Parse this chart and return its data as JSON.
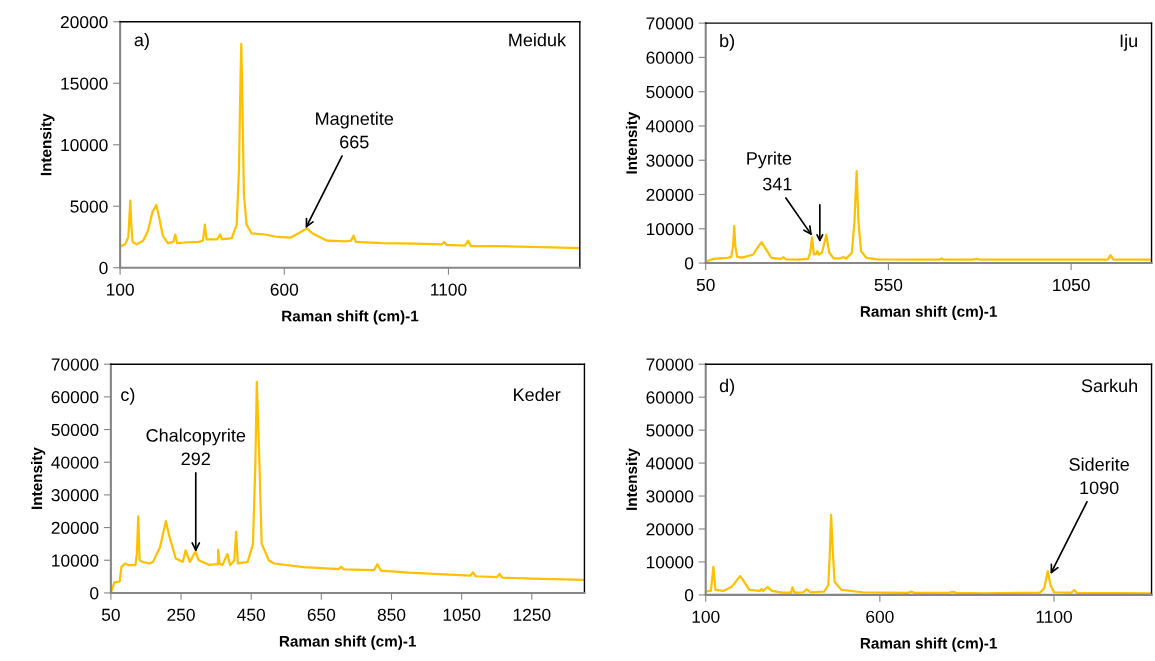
{
  "chart_data": [
    {
      "type": "line",
      "title": "Meiduk",
      "xlabel": "Raman shift (cm)-1",
      "ylabel": "Intensity",
      "xlim": [
        100,
        1500
      ],
      "xticks": [
        100,
        600,
        1100
      ],
      "ylim": [
        0,
        20000
      ],
      "yticks": [
        0,
        5000,
        10000,
        15000,
        20000
      ],
      "grid": false,
      "legend": false,
      "annotations": [
        "a)",
        {
          "text": "Magnetite\n665",
          "x": 665,
          "y": 3200
        }
      ],
      "series": [
        {
          "color": "#ffc000",
          "x": [
            100,
            115,
            125,
            128,
            131,
            134,
            138,
            150,
            170,
            185,
            198,
            210,
            218,
            230,
            245,
            262,
            268,
            273,
            300,
            340,
            352,
            358,
            363,
            395,
            405,
            410,
            440,
            455,
            462,
            467,
            469,
            472,
            477,
            485,
            500,
            540,
            580,
            620,
            650,
            669,
            685,
            700,
            730,
            790,
            803,
            811,
            818,
            900,
            1000,
            1080,
            1087,
            1094,
            1150,
            1160,
            1168,
            1250,
            1350,
            1500
          ],
          "values": [
            1700,
            1900,
            2500,
            4000,
            5450,
            3500,
            2100,
            1900,
            2200,
            3000,
            4500,
            5100,
            4200,
            2600,
            2000,
            2100,
            2700,
            2000,
            2050,
            2100,
            2200,
            3500,
            2300,
            2300,
            2700,
            2300,
            2400,
            3500,
            8000,
            16000,
            18200,
            14000,
            6000,
            3500,
            2800,
            2700,
            2500,
            2450,
            2900,
            3200,
            2800,
            2600,
            2200,
            2150,
            2200,
            2600,
            2100,
            2000,
            1950,
            1900,
            2100,
            1850,
            1800,
            2200,
            1750,
            1750,
            1700,
            1600
          ]
        }
      ]
    },
    {
      "type": "line",
      "title": "Iju",
      "xlabel": "Raman shift (cm)-1",
      "ylabel": "Intensity",
      "xlim": [
        50,
        1270
      ],
      "xticks": [
        50,
        550,
        1050
      ],
      "ylim": [
        0,
        70000
      ],
      "yticks": [
        0,
        10000,
        20000,
        30000,
        40000,
        50000,
        60000,
        70000
      ],
      "grid": false,
      "legend": false,
      "annotations": [
        "b)",
        "Pyrite",
        {
          "text": "341",
          "x": 341,
          "y": 8000
        }
      ],
      "series": [
        {
          "color": "#ffc000",
          "x": [
            50,
            60,
            70,
            110,
            120,
            125,
            128,
            131,
            136,
            150,
            180,
            195,
            203,
            212,
            230,
            255,
            263,
            270,
            300,
            330,
            336,
            341,
            346,
            352,
            355,
            360,
            368,
            375,
            380,
            388,
            394,
            400,
            420,
            427,
            434,
            450,
            457,
            463,
            468,
            475,
            490,
            520,
            600,
            690,
            695,
            700,
            780,
            792,
            800,
            900,
            1050,
            1150,
            1158,
            1166,
            1270
          ],
          "values": [
            300,
            800,
            1200,
            1500,
            1800,
            5000,
            10800,
            5000,
            1800,
            1600,
            2500,
            5000,
            6100,
            4500,
            1500,
            1200,
            1700,
            1100,
            1000,
            1200,
            3000,
            7500,
            2500,
            2600,
            3500,
            2500,
            3000,
            6000,
            8300,
            3000,
            2200,
            1400,
            1400,
            1800,
            1300,
            3000,
            12000,
            26800,
            12000,
            3500,
            1500,
            1100,
            1000,
            1000,
            1400,
            1000,
            1000,
            1200,
            1000,
            1000,
            1000,
            1000,
            2300,
            1000,
            1000
          ]
        }
      ]
    },
    {
      "type": "line",
      "title": "Keder",
      "xlabel": "Raman shift (cm)-1",
      "ylabel": "Intensity",
      "xlim": [
        50,
        1400
      ],
      "xticks": [
        50,
        250,
        450,
        650,
        850,
        1050,
        1250
      ],
      "ylim": [
        0,
        70000
      ],
      "yticks": [
        0,
        10000,
        20000,
        30000,
        40000,
        50000,
        60000,
        70000
      ],
      "grid": false,
      "legend": false,
      "annotations": [
        "c)",
        {
          "text": "Chalcopyrite\n292",
          "x": 292,
          "y": 12500
        }
      ],
      "series": [
        {
          "color": "#ffc000",
          "x": [
            50,
            60,
            75,
            80,
            90,
            100,
            120,
            124,
            128,
            132,
            140,
            160,
            170,
            190,
            207,
            215,
            235,
            255,
            263,
            275,
            291,
            300,
            330,
            355,
            356,
            360,
            368,
            382,
            390,
            402,
            407,
            412,
            440,
            455,
            462,
            466,
            472,
            480,
            500,
            515,
            600,
            700,
            706,
            715,
            800,
            810,
            820,
            900,
            1000,
            1075,
            1082,
            1090,
            1150,
            1158,
            1166,
            1250,
            1400
          ],
          "values": [
            0,
            3200,
            3500,
            7900,
            9000,
            8500,
            8500,
            12000,
            23400,
            10000,
            9500,
            9000,
            9500,
            14000,
            22000,
            18000,
            10500,
            9500,
            13000,
            9500,
            12700,
            10000,
            8600,
            8800,
            13200,
            9000,
            8500,
            11900,
            8500,
            10000,
            18700,
            9000,
            9500,
            15000,
            40000,
            64600,
            45000,
            15000,
            10000,
            9000,
            7900,
            7300,
            8000,
            7200,
            7000,
            8800,
            6800,
            6200,
            5700,
            5300,
            6300,
            5100,
            4800,
            5800,
            4700,
            4400,
            4000
          ]
        }
      ]
    },
    {
      "type": "line",
      "title": "Sarkuh",
      "xlabel": "Raman shift (cm)-1",
      "ylabel": "Intensity",
      "xlim": [
        100,
        1380
      ],
      "xticks": [
        100,
        600,
        1100
      ],
      "ylim": [
        0,
        70000
      ],
      "yticks": [
        0,
        10000,
        20000,
        30000,
        40000,
        50000,
        60000,
        70000
      ],
      "grid": false,
      "legend": false,
      "annotations": [
        "d)",
        {
          "text": "Siderite\n1090",
          "x": 1090,
          "y": 6300
        }
      ],
      "series": [
        {
          "color": "#ffc000",
          "x": [
            100,
            115,
            122,
            128,
            150,
            175,
            190,
            199,
            210,
            225,
            255,
            260,
            265,
            278,
            290,
            320,
            345,
            349,
            355,
            380,
            390,
            400,
            440,
            452,
            456,
            460,
            464,
            470,
            490,
            550,
            680,
            690,
            700,
            800,
            810,
            820,
            900,
            1060,
            1072,
            1082,
            1090,
            1100,
            1150,
            1158,
            1166,
            1380
          ],
          "values": [
            1000,
            1300,
            8500,
            1500,
            1200,
            2500,
            4500,
            5700,
            4000,
            1500,
            1200,
            1800,
            1200,
            2400,
            1200,
            700,
            700,
            2300,
            700,
            800,
            1700,
            800,
            1000,
            3000,
            12000,
            24300,
            15000,
            4000,
            1500,
            800,
            600,
            1000,
            600,
            700,
            900,
            600,
            500,
            700,
            2000,
            7200,
            3000,
            800,
            700,
            1500,
            600,
            500
          ]
        }
      ]
    }
  ]
}
